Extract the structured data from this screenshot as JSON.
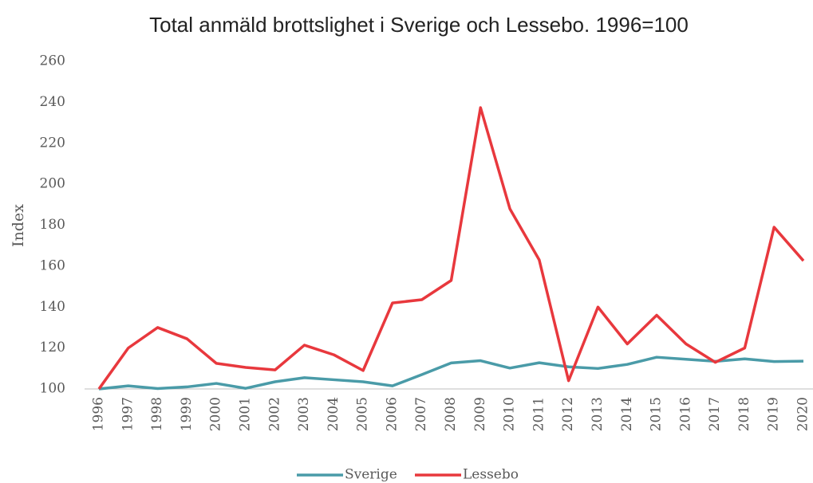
{
  "chart_data": {
    "type": "line",
    "title": "Total anmäld brottslighet i Sverige och Lessebo. 1996=100",
    "y_label": "Index",
    "categories": [
      "1996",
      "1997",
      "1998",
      "1999",
      "2000",
      "2001",
      "2002",
      "2003",
      "2004",
      "2005",
      "2006",
      "2007",
      "2008",
      "2009",
      "2010",
      "2011",
      "2012",
      "2013",
      "2014",
      "2015",
      "2016",
      "2017",
      "2018",
      "2019",
      "2020"
    ],
    "series": [
      {
        "name": "Sverige",
        "color": "#4a9ba8",
        "values": [
          100,
          101.5,
          100.2,
          101,
          102.7,
          100.3,
          103.5,
          105.5,
          104.5,
          103.5,
          101.5,
          107,
          112.7,
          113.8,
          110.2,
          112.8,
          110.8,
          110,
          112,
          115.5,
          114.5,
          113.5,
          114.7,
          113.4,
          113.6
        ]
      },
      {
        "name": "Lessebo",
        "color": "#e8383d",
        "values": [
          100,
          120,
          130,
          124.5,
          112.5,
          110.5,
          109.3,
          121.4,
          116.7,
          109,
          142,
          143.6,
          153,
          237.4,
          188,
          163,
          104,
          140,
          122,
          136,
          122,
          113,
          120,
          179,
          162.6
        ]
      }
    ],
    "ylim": [
      100,
      260
    ],
    "yticks": [
      100,
      120,
      140,
      160,
      180,
      200,
      220,
      240,
      260
    ],
    "grid": false,
    "legend": "bottom"
  }
}
